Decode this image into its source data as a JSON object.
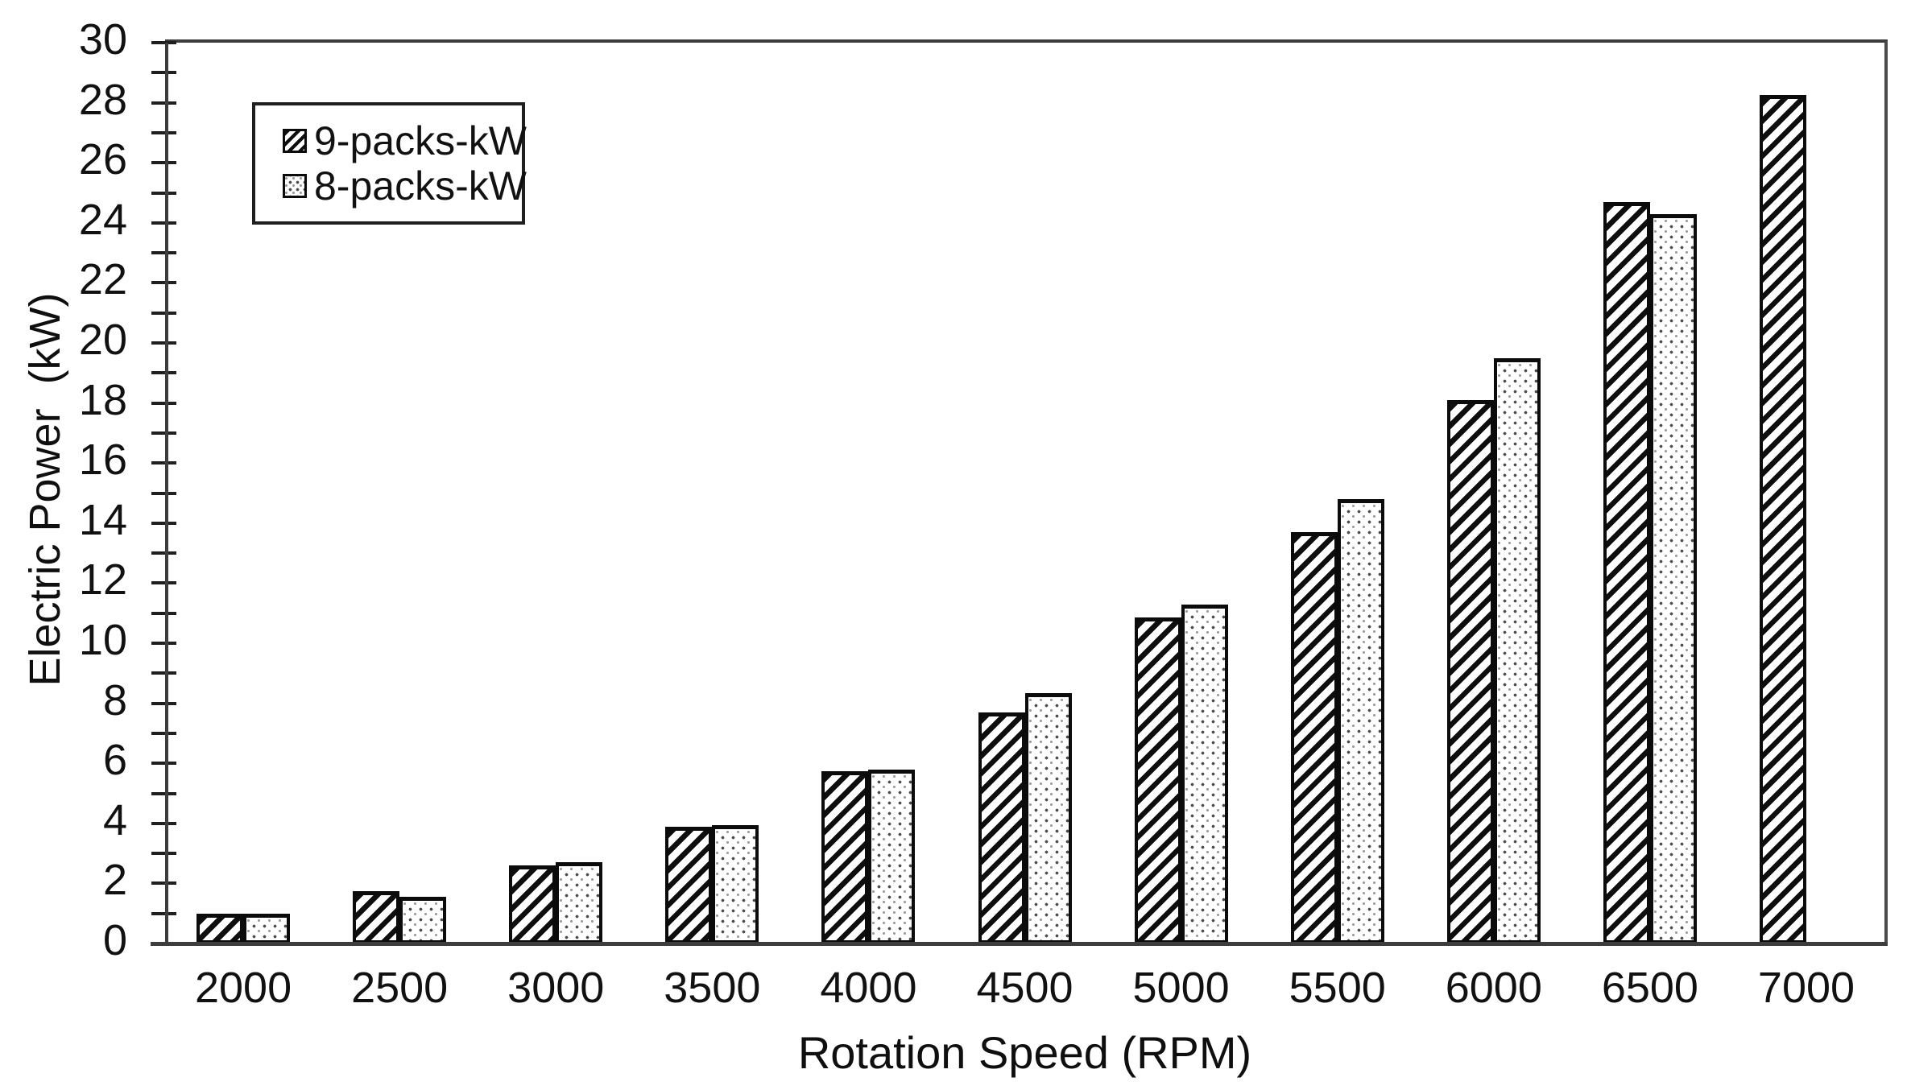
{
  "figure": {
    "y_axis_title": "Electric Power  (kW)",
    "x_axis_title": "Rotation Speed (RPM)"
  },
  "legend": {
    "items": [
      {
        "label": "9-packs-kW",
        "pattern": "diagonal-hatch"
      },
      {
        "label": "8-packs-kW",
        "pattern": "dots"
      }
    ]
  },
  "chart_data": {
    "type": "bar",
    "title": "",
    "categories": [
      "2000",
      "2500",
      "3000",
      "3500",
      "4000",
      "4500",
      "5000",
      "5500",
      "6000",
      "6500",
      "7000"
    ],
    "series": [
      {
        "name": "9-packs-kW",
        "pattern": "diagonal-hatch",
        "values": [
          1.0,
          1.75,
          2.6,
          3.9,
          5.75,
          7.7,
          10.85,
          13.7,
          18.1,
          24.7,
          28.25
        ]
      },
      {
        "name": "8-packs-kW",
        "pattern": "dots",
        "values": [
          1.0,
          1.55,
          2.7,
          3.95,
          5.8,
          8.35,
          11.3,
          14.8,
          19.5,
          24.3,
          null
        ]
      }
    ],
    "xlabel": "Rotation Speed (RPM)",
    "ylabel": "Electric Power (kW)",
    "ylim": [
      0,
      30
    ],
    "y_major_step": 2,
    "y_minor_step": 1,
    "grid": false,
    "legend_position": "upper-left-inside",
    "colors": {
      "ink": "#111111",
      "axis": "#3d3d3d",
      "background": "#ffffff"
    }
  }
}
